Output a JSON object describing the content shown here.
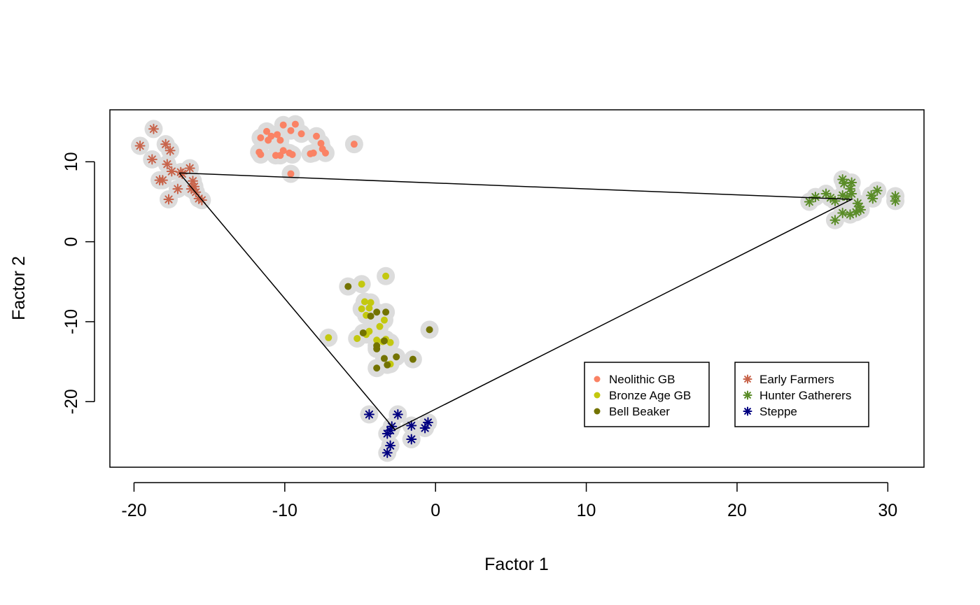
{
  "chart_data": {
    "type": "scatter",
    "title": "",
    "xlabel": "Factor 1",
    "ylabel": "Factor 2",
    "xlim": [
      -21.6,
      32.4
    ],
    "ylim": [
      -28.2,
      16.5
    ],
    "xticks": [
      -20,
      -10,
      0,
      10,
      20,
      30
    ],
    "yticks": [
      -20,
      -10,
      0,
      10
    ],
    "legend_position": "bottom-right",
    "colors": {
      "halo": "#dcdcdc",
      "neolithic": "#fa8264",
      "bronze": "#c3c80f",
      "beaker": "#737300",
      "farmers": "#c8644b",
      "hunters": "#5a8c28",
      "steppe": "#000080",
      "triangle": "#000000"
    },
    "triangle": [
      [
        -17.0,
        8.6
      ],
      [
        27.6,
        5.3
      ],
      [
        -2.7,
        -23.5
      ],
      [
        -17.0,
        8.6
      ]
    ],
    "legends": [
      {
        "entries": [
          {
            "label": "Neolithic GB",
            "color": "#fa8264",
            "marker": "dot"
          },
          {
            "label": "Bronze Age GB",
            "color": "#c3c80f",
            "marker": "dot"
          },
          {
            "label": "Bell Beaker",
            "color": "#737300",
            "marker": "dot"
          }
        ]
      },
      {
        "entries": [
          {
            "label": "Early Farmers",
            "color": "#c8644b",
            "marker": "star"
          },
          {
            "label": "Hunter Gatherers",
            "color": "#5a8c28",
            "marker": "star"
          },
          {
            "label": "Steppe",
            "color": "#000080",
            "marker": "star"
          }
        ]
      }
    ],
    "series": [
      {
        "name": "Neolithic GB",
        "marker": "dot",
        "color": "#fa8264",
        "points": [
          [
            -11.2,
            13.8
          ],
          [
            -10.5,
            13.4
          ],
          [
            -11.6,
            13.0
          ],
          [
            -11.1,
            12.7
          ],
          [
            -10.9,
            13.2
          ],
          [
            -10.1,
            14.6
          ],
          [
            -9.3,
            14.7
          ],
          [
            -9.6,
            13.9
          ],
          [
            -8.9,
            13.5
          ],
          [
            -7.9,
            13.2
          ],
          [
            -10.3,
            12.7
          ],
          [
            -11.7,
            11.2
          ],
          [
            -11.6,
            10.9
          ],
          [
            -10.1,
            11.4
          ],
          [
            -9.7,
            11.1
          ],
          [
            -10.3,
            10.8
          ],
          [
            -10.6,
            10.8
          ],
          [
            -9.5,
            10.9
          ],
          [
            -8.3,
            11.0
          ],
          [
            -8.1,
            11.1
          ],
          [
            -7.6,
            12.3
          ],
          [
            -7.5,
            11.6
          ],
          [
            -7.3,
            11.1
          ],
          [
            -5.4,
            12.2
          ],
          [
            -9.6,
            8.5
          ]
        ]
      },
      {
        "name": "Bronze Age GB",
        "marker": "dot",
        "color": "#c3c80f",
        "points": [
          [
            -3.3,
            -4.3
          ],
          [
            -4.9,
            -5.3
          ],
          [
            -4.7,
            -7.5
          ],
          [
            -4.3,
            -7.6
          ],
          [
            -4.4,
            -8.3
          ],
          [
            -4.9,
            -8.4
          ],
          [
            -4.6,
            -9.2
          ],
          [
            -3.4,
            -9.8
          ],
          [
            -3.7,
            -10.6
          ],
          [
            -4.4,
            -11.2
          ],
          [
            -4.6,
            -11.6
          ],
          [
            -3.9,
            -12.3
          ],
          [
            -3.5,
            -12.5
          ],
          [
            -3.3,
            -12.2
          ],
          [
            -3.0,
            -12.6
          ],
          [
            -5.2,
            -12.1
          ],
          [
            -7.1,
            -12.0
          ],
          [
            -3.0,
            -15.3
          ]
        ]
      },
      {
        "name": "Bell Beaker",
        "marker": "dot",
        "color": "#737300",
        "points": [
          [
            -5.8,
            -5.6
          ],
          [
            -4.3,
            -9.3
          ],
          [
            -3.9,
            -8.8
          ],
          [
            -3.3,
            -8.8
          ],
          [
            -4.8,
            -11.4
          ],
          [
            -3.9,
            -13.0
          ],
          [
            -3.4,
            -12.4
          ],
          [
            -3.9,
            -13.4
          ],
          [
            -2.6,
            -14.4
          ],
          [
            -3.4,
            -14.6
          ],
          [
            -1.5,
            -14.7
          ],
          [
            -3.2,
            -15.4
          ],
          [
            -3.9,
            -15.8
          ],
          [
            -0.4,
            -11.0
          ]
        ]
      },
      {
        "name": "Early Farmers",
        "marker": "star",
        "color": "#c8644b",
        "points": [
          [
            -18.7,
            14.1
          ],
          [
            -19.6,
            12.0
          ],
          [
            -17.9,
            12.2
          ],
          [
            -17.6,
            11.4
          ],
          [
            -18.8,
            10.3
          ],
          [
            -17.8,
            9.7
          ],
          [
            -17.5,
            8.8
          ],
          [
            -16.9,
            8.7
          ],
          [
            -16.3,
            9.2
          ],
          [
            -16.8,
            8.5
          ],
          [
            -18.3,
            7.7
          ],
          [
            -18.1,
            7.7
          ],
          [
            -16.1,
            7.6
          ],
          [
            -16.0,
            6.9
          ],
          [
            -17.1,
            6.6
          ],
          [
            -16.2,
            6.6
          ],
          [
            -15.9,
            6.2
          ],
          [
            -17.7,
            5.3
          ],
          [
            -15.7,
            5.4
          ],
          [
            -15.5,
            5.2
          ]
        ]
      },
      {
        "name": "Hunter Gatherers",
        "marker": "star",
        "color": "#5a8c28",
        "points": [
          [
            27.0,
            7.8
          ],
          [
            27.1,
            7.3
          ],
          [
            27.6,
            7.4
          ],
          [
            27.5,
            6.6
          ],
          [
            27.6,
            6.0
          ],
          [
            27.3,
            5.6
          ],
          [
            27.0,
            5.8
          ],
          [
            25.9,
            6.0
          ],
          [
            25.2,
            5.6
          ],
          [
            24.8,
            5.0
          ],
          [
            26.2,
            5.5
          ],
          [
            26.5,
            5.1
          ],
          [
            28.0,
            4.8
          ],
          [
            28.1,
            4.4
          ],
          [
            28.2,
            4.0
          ],
          [
            27.9,
            3.7
          ],
          [
            27.5,
            3.4
          ],
          [
            27.0,
            3.6
          ],
          [
            26.5,
            2.7
          ],
          [
            28.9,
            5.8
          ],
          [
            29.0,
            5.4
          ],
          [
            29.3,
            6.4
          ],
          [
            30.5,
            5.7
          ],
          [
            30.5,
            5.1
          ]
        ]
      },
      {
        "name": "Steppe",
        "marker": "star",
        "color": "#000080",
        "points": [
          [
            -4.4,
            -21.6
          ],
          [
            -2.5,
            -21.6
          ],
          [
            -2.9,
            -23.1
          ],
          [
            -3.0,
            -23.6
          ],
          [
            -3.2,
            -24.0
          ],
          [
            -1.6,
            -23.0
          ],
          [
            -0.7,
            -23.3
          ],
          [
            -0.5,
            -22.6
          ],
          [
            -1.6,
            -24.7
          ],
          [
            -3.0,
            -25.5
          ],
          [
            -3.2,
            -26.4
          ]
        ]
      }
    ]
  }
}
